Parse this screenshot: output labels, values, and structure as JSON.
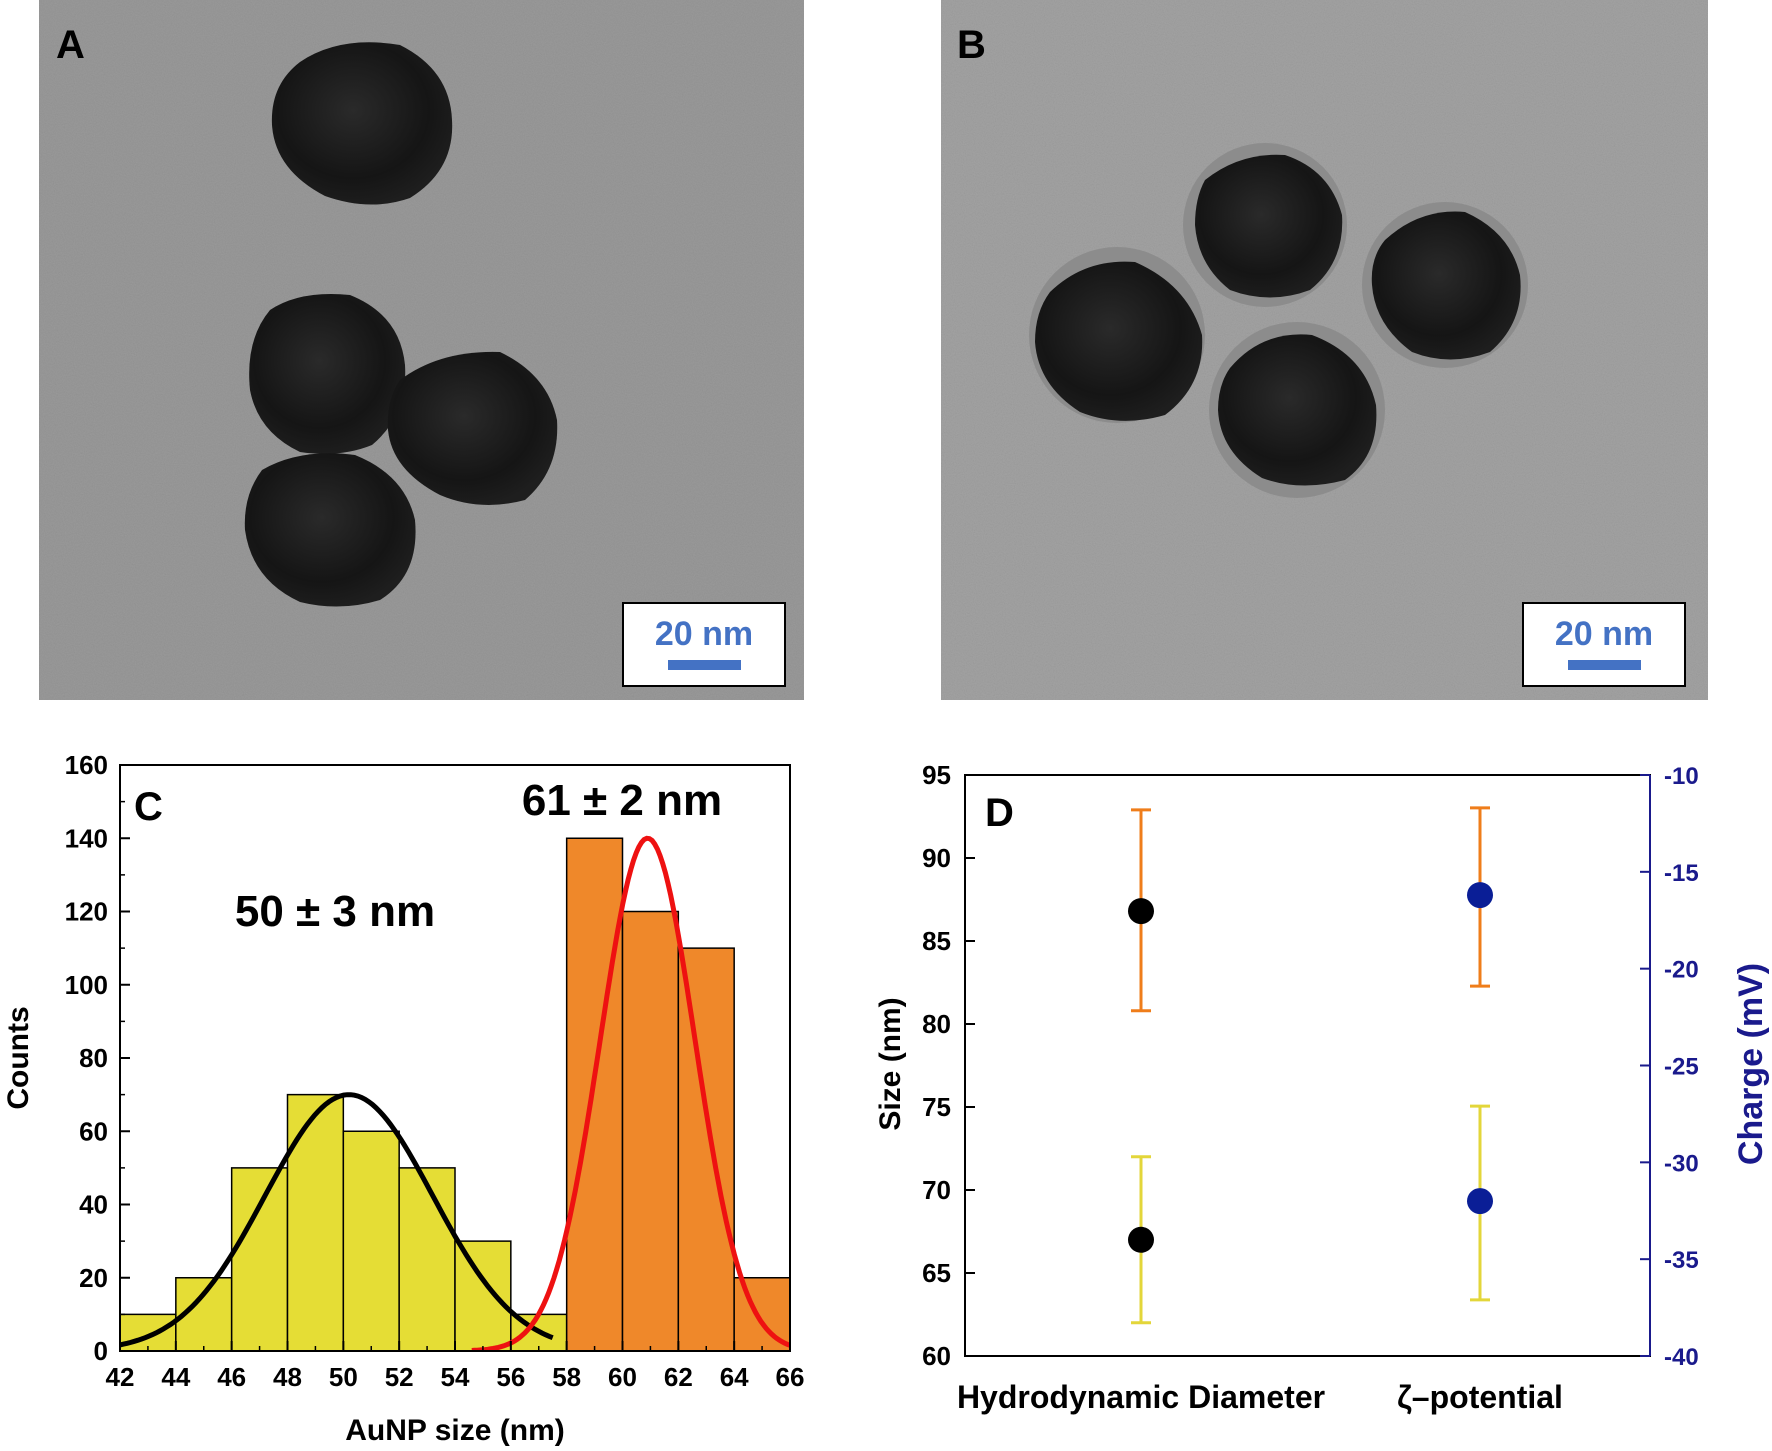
{
  "panels": {
    "A": {
      "letter": "A",
      "scale_bar": "20 nm"
    },
    "B": {
      "letter": "B",
      "scale_bar": "20 nm"
    },
    "C": {
      "letter": "C"
    },
    "D": {
      "letter": "D"
    }
  },
  "colors": {
    "yellow_bars": "#e5dd35",
    "orange_bars": "#ef882a",
    "fit_black": "#000000",
    "fit_red": "#ee1111",
    "scale_bar_blue": "#4472c4",
    "right_axis_blue": "#1a1a8c",
    "point_navy": "#0a1e96",
    "errbar_orange": "#ef7d1a",
    "errbar_yellow": "#e3d63a"
  },
  "chart_data": [
    {
      "type": "bar",
      "panel": "C",
      "xlabel": "AuNP size (nm)",
      "ylabel": "Counts",
      "xlim": [
        42,
        66
      ],
      "ylim": [
        0,
        160
      ],
      "x_ticks": [
        42,
        44,
        46,
        48,
        50,
        52,
        54,
        56,
        58,
        60,
        62,
        64,
        66
      ],
      "y_ticks": [
        0,
        20,
        40,
        60,
        80,
        100,
        120,
        140,
        160
      ],
      "bin_width": 2,
      "series": [
        {
          "bin_starts": [
            42,
            44,
            46,
            48,
            50,
            52,
            54,
            56
          ],
          "values": [
            10,
            20,
            50,
            70,
            60,
            50,
            30,
            10
          ],
          "color": "#e5dd35"
        },
        {
          "bin_starts": [
            58,
            60,
            62,
            64
          ],
          "values": [
            140,
            120,
            110,
            20
          ],
          "color": "#ef882a"
        }
      ],
      "fits": [
        {
          "type": "gaussian",
          "mean": 50.2,
          "sigma": 3.0,
          "amplitude": 70,
          "x_range": [
            42,
            57.5
          ],
          "color": "#000000"
        },
        {
          "type": "gaussian",
          "mean": 60.9,
          "sigma": 1.7,
          "amplitude": 140,
          "x_range": [
            54.6,
            66
          ],
          "color": "#ee1111"
        }
      ],
      "annotations": [
        "50 ± 3 nm",
        "61 ± 2 nm"
      ]
    },
    {
      "type": "scatter",
      "panel": "D",
      "categories": [
        "Hydrodynamic Diameter",
        "ζ–potential"
      ],
      "ylabel_left": "Size (nm)",
      "ylabel_right": "Charge (mV)",
      "ylim_left": [
        60,
        95
      ],
      "ylim_right": [
        -40,
        -10
      ],
      "y_ticks_left": [
        60,
        65,
        70,
        75,
        80,
        85,
        90,
        95
      ],
      "y_ticks_right": [
        -40,
        -35,
        -30,
        -25,
        -20,
        -15,
        -10
      ],
      "series": [
        {
          "axis": "left",
          "category": "Hydrodynamic Diameter",
          "points": [
            {
              "y": 86.8,
              "err_low": 80.8,
              "err_high": 92.9,
              "color": "#000000",
              "err_color": "#ef7d1a"
            },
            {
              "y": 67.0,
              "err_low": 62.0,
              "err_high": 72.0,
              "color": "#000000",
              "err_color": "#e3d63a"
            }
          ]
        },
        {
          "axis": "right",
          "category": "ζ–potential",
          "points": [
            {
              "y": -16.2,
              "err_low": -20.9,
              "err_high": -11.7,
              "color": "#0a1e96",
              "err_color": "#ef7d1a"
            },
            {
              "y": -32.0,
              "err_low": -37.1,
              "err_high": -27.1,
              "color": "#0a1e96",
              "err_color": "#e3d63a"
            }
          ]
        }
      ]
    }
  ]
}
